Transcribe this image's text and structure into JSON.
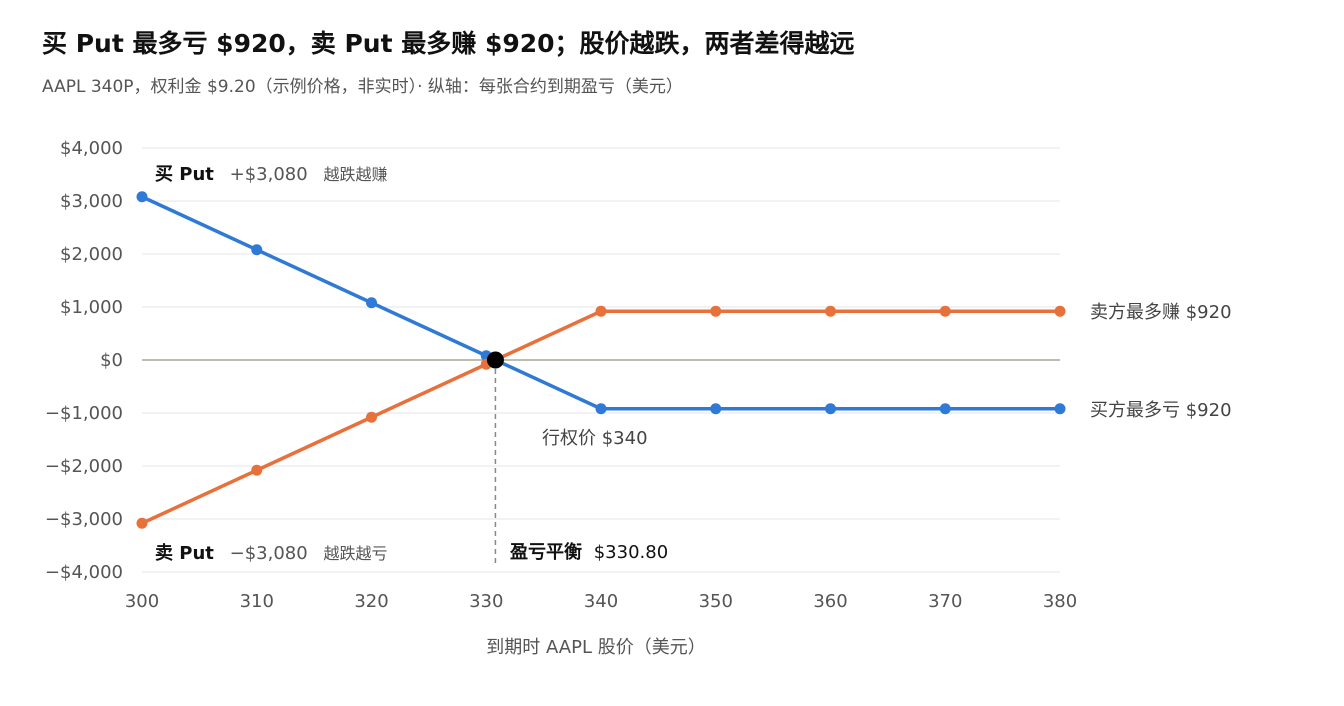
{
  "title": "买 Put 最多亏 $920，卖 Put 最多赚 $920；股价越跌，两者差得越远",
  "subtitle": "AAPL 340P，权利金 $9.20（示例价格，非实时）· 纵轴：每张合约到期盈亏（美元）",
  "chart_data": {
    "type": "line",
    "title": "买 Put 最多亏 $920，卖 Put 最多赚 $920；股价越跌，两者差得越远",
    "xlabel": "到期时 AAPL 股价（美元）",
    "ylabel": "",
    "xlim": [
      300,
      380
    ],
    "ylim": [
      -4000,
      4000
    ],
    "grid": true,
    "x_ticks": [
      "300",
      "310",
      "320",
      "330",
      "340",
      "350",
      "360",
      "370",
      "380"
    ],
    "y_ticks": [
      "$4,000",
      "$3,000",
      "$2,000",
      "$1,000",
      "$0",
      "−$1,000",
      "−$2,000",
      "−$3,000",
      "−$4,000"
    ],
    "x": [
      300,
      310,
      320,
      330,
      340,
      350,
      360,
      370,
      380
    ],
    "series": [
      {
        "name": "买方",
        "color": "#2f7ad6",
        "values": [
          3080,
          2080,
          1080,
          80,
          -920,
          -920,
          -920,
          -920,
          -920
        ]
      },
      {
        "name": "卖方",
        "color": "#e8703a",
        "values": [
          -3080,
          -2080,
          -1080,
          -80,
          920,
          920,
          920,
          920,
          920
        ]
      }
    ],
    "breakeven": {
      "x": 330.8,
      "y": 0
    },
    "annotations": {
      "buy_put_label": "买 Put",
      "buy_put_value": "+$3,080",
      "buy_put_note": "越跌越赚",
      "sell_put_label": "卖 Put",
      "sell_put_value": "−$3,080",
      "sell_put_note": "越跌越亏",
      "seller_max": "卖方最多赚 $920",
      "buyer_max": "买方最多亏 $920",
      "strike": "行权价 $340",
      "breakeven_label": "盈亏平衡",
      "breakeven_value": "$330.80"
    }
  }
}
